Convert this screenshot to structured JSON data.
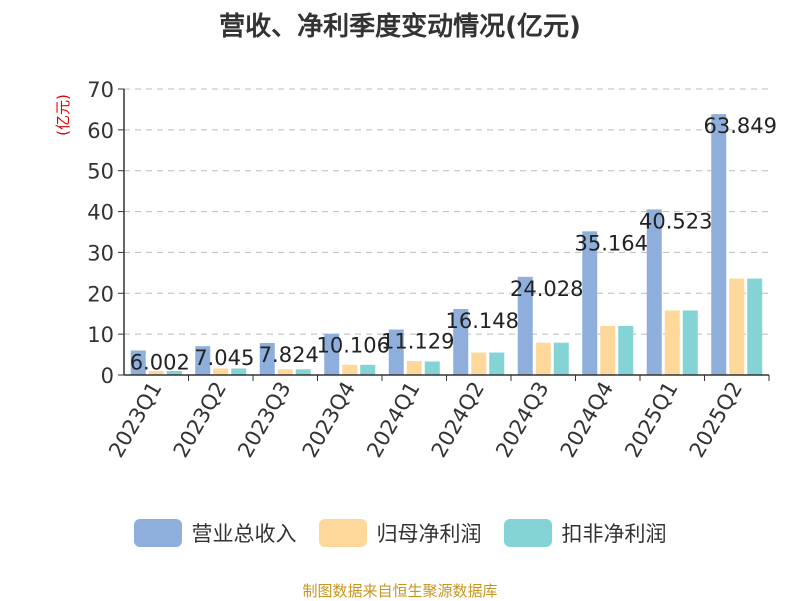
{
  "title": "营收、净利季度变动情况(亿元)",
  "source": "制图数据来自恒生聚源数据库",
  "colors": {
    "revenue": "#8eaedc",
    "net_profit": "#fdd89a",
    "deducted_profit": "#84d4d6",
    "ylabel": "#e00000",
    "grid": "#bbbbbb",
    "axis": "#333333"
  },
  "chart_data": {
    "type": "bar",
    "title": "营收、净利季度变动情况(亿元)",
    "ylabel": "(亿元)",
    "xlabel": "",
    "ylim": [
      0,
      70
    ],
    "yticks": [
      0,
      10,
      20,
      30,
      40,
      50,
      60,
      70
    ],
    "grid": true,
    "legend_position": "bottom",
    "categories": [
      "2023Q1",
      "2023Q2",
      "2023Q3",
      "2023Q4",
      "2024Q1",
      "2024Q2",
      "2024Q3",
      "2024Q4",
      "2025Q1",
      "2025Q2"
    ],
    "series": [
      {
        "name": "营业总收入",
        "values": [
          6.002,
          7.045,
          7.824,
          10.106,
          11.129,
          16.148,
          24.028,
          35.164,
          40.523,
          63.849
        ],
        "labels": [
          "6.002",
          "7.045",
          "7.824",
          "10.106",
          "11.129",
          "16.148",
          "24.028",
          "35.164",
          "40.523",
          "63.849"
        ]
      },
      {
        "name": "归母净利润",
        "values": [
          1.0,
          1.6,
          1.4,
          2.5,
          3.4,
          5.5,
          7.9,
          12.0,
          15.8,
          23.6
        ]
      },
      {
        "name": "扣非净利润",
        "values": [
          1.0,
          1.6,
          1.4,
          2.5,
          3.3,
          5.5,
          7.9,
          12.0,
          15.8,
          23.6
        ]
      }
    ]
  }
}
